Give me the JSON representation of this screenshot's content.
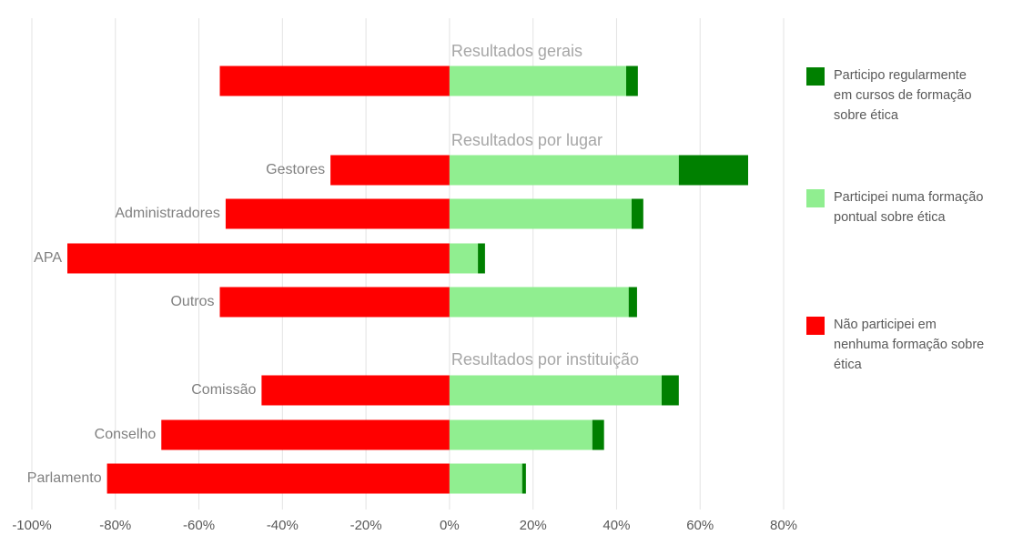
{
  "chart_data": {
    "type": "bar",
    "orientation": "horizontal",
    "stacked": true,
    "categories": [
      null,
      "Gestores",
      "Administradores",
      "APA",
      "Outros",
      "Comissão",
      "Conselho",
      "Parlamento"
    ],
    "series": [
      {
        "name": "Não participei em nenhuma formação sobre ética",
        "color": "#ff0000",
        "values": [
          -55,
          -28.5,
          -53.6,
          -91.5,
          -55,
          -45,
          -69,
          -82
        ]
      },
      {
        "name": "Participei numa formação pontual sobre ética",
        "color": "#90ee90",
        "values": [
          42.3,
          54.9,
          43.6,
          6.8,
          42.9,
          50.8,
          34.2,
          17.4
        ]
      },
      {
        "name": "Participo regularmente em cursos de formação sobre ética",
        "color": "#008000",
        "values": [
          2.8,
          16.6,
          2.8,
          1.7,
          2.0,
          4.1,
          2.8,
          0.9
        ]
      }
    ],
    "annotations": [
      "Resultados gerais",
      "Resultados por lugar",
      "Resultados por instituição"
    ],
    "xlim": [
      -100,
      80
    ],
    "xticks": [
      {
        "value": -100,
        "label": "-100%"
      },
      {
        "value": -80,
        "label": "-80%"
      },
      {
        "value": -60,
        "label": "-60%"
      },
      {
        "value": -40,
        "label": "-40%"
      },
      {
        "value": -20,
        "label": "-20%"
      },
      {
        "value": 0,
        "label": "0%"
      },
      {
        "value": 20,
        "label": "20%"
      },
      {
        "value": 40,
        "label": "40%"
      },
      {
        "value": 60,
        "label": "60%"
      },
      {
        "value": 80,
        "label": "80%"
      }
    ],
    "grid": true,
    "legend": "right"
  }
}
